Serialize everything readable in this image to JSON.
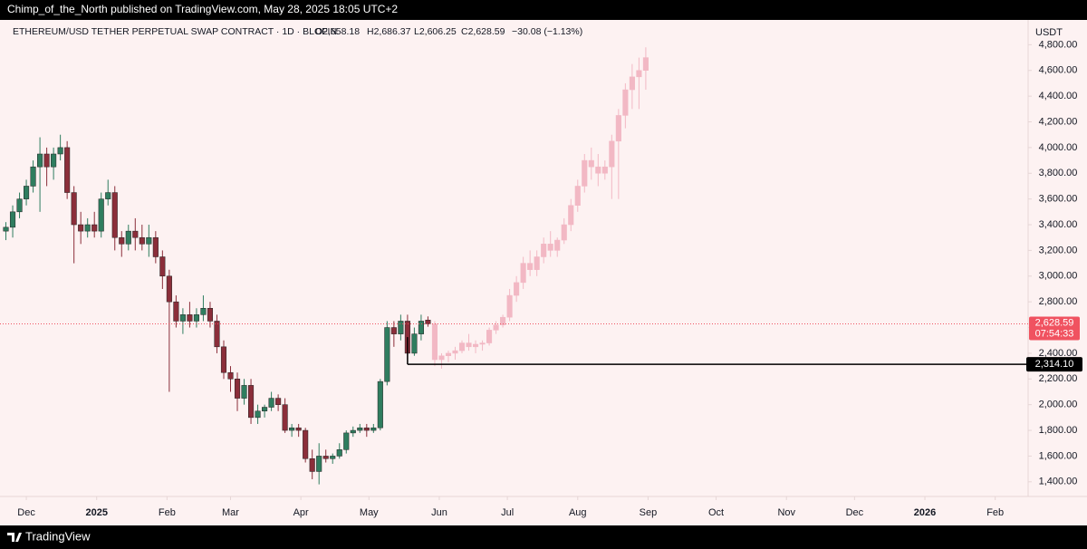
{
  "page": {
    "publisher_line": "Chimp_of_the_North published on TradingView.com, May 28, 2025 18:05 UTC+2",
    "brand": "TradingView"
  },
  "header": {
    "symbol": "ETHEREUM/USD TETHER PERPETUAL SWAP CONTRACT · 1D · BLOFIN",
    "open": "O2,658.18",
    "high": "H2,686.37",
    "low": "L2,606.25",
    "close": "C2,628.59",
    "change": "−30.08 (−1.13%)",
    "currency": "USDT"
  },
  "chart_data": {
    "type": "candlestick",
    "xlim": [
      -11.6,
      441.5
    ],
    "xticks": [
      {
        "value": 0,
        "label": "Dec"
      },
      {
        "value": 31,
        "label": "2025"
      },
      {
        "value": 62,
        "label": "Feb"
      },
      {
        "value": 90,
        "label": "Mar"
      },
      {
        "value": 121,
        "label": "Apr"
      },
      {
        "value": 151,
        "label": "May"
      },
      {
        "value": 182,
        "label": "Jun"
      },
      {
        "value": 212,
        "label": "Jul"
      },
      {
        "value": 243,
        "label": "Aug"
      },
      {
        "value": 274,
        "label": "Sep"
      },
      {
        "value": 304,
        "label": "Oct"
      },
      {
        "value": 335,
        "label": "Nov"
      },
      {
        "value": 365,
        "label": "Dec"
      },
      {
        "value": 396,
        "label": "2026"
      },
      {
        "value": 427,
        "label": "Feb"
      }
    ],
    "ylim": [
      1300,
      5000
    ],
    "yticks": [
      {
        "value": 1400,
        "label": "1,400.00"
      },
      {
        "value": 1600,
        "label": "1,600.00"
      },
      {
        "value": 1800,
        "label": "1,800.00"
      },
      {
        "value": 2000,
        "label": "2,000.00"
      },
      {
        "value": 2200,
        "label": "2,200.00"
      },
      {
        "value": 2400,
        "label": "2,400.00"
      },
      {
        "value": 2600,
        "label": "2,600.00"
      },
      {
        "value": 2800,
        "label": "2,800.00"
      },
      {
        "value": 3000,
        "label": "3,000.00"
      },
      {
        "value": 3200,
        "label": "3,200.00"
      },
      {
        "value": 3400,
        "label": "3,400.00"
      },
      {
        "value": 3600,
        "label": "3,600.00"
      },
      {
        "value": 3800,
        "label": "3,800.00"
      },
      {
        "value": 4000,
        "label": "4,000.00"
      },
      {
        "value": 4200,
        "label": "4,200.00"
      },
      {
        "value": 4400,
        "label": "4,400.00"
      },
      {
        "value": 4600,
        "label": "4,600.00"
      },
      {
        "value": 4800,
        "label": "4,800.00"
      }
    ],
    "series": [
      {
        "color_up": "#2f7d5f",
        "color_down": "#8b2e3a",
        "x": [
          -9,
          -6,
          -3,
          0,
          3,
          6,
          9,
          12,
          15,
          18,
          21,
          24,
          27,
          30,
          33,
          36,
          39,
          42,
          45,
          48,
          51,
          54,
          57,
          60,
          63,
          66,
          69,
          72,
          75,
          78,
          81,
          84,
          87,
          90,
          93,
          96,
          99,
          102,
          105,
          108,
          111,
          114,
          117,
          120,
          123,
          126,
          129,
          132,
          135,
          138,
          141,
          144,
          147,
          150,
          153,
          156,
          159,
          162,
          165,
          168,
          171,
          174,
          177
        ],
        "open": [
          3350,
          3380,
          3500,
          3600,
          3700,
          3850,
          3950,
          3850,
          3950,
          4000,
          3650,
          3400,
          3350,
          3400,
          3350,
          3600,
          3650,
          3300,
          3250,
          3350,
          3300,
          3250,
          3300,
          3150,
          3000,
          2800,
          2650,
          2700,
          2650,
          2700,
          2750,
          2650,
          2450,
          2250,
          2200,
          2050,
          2150,
          1900,
          1950,
          1980,
          2050,
          2000,
          1800,
          1820,
          1800,
          1580,
          1480,
          1600,
          1580,
          1600,
          1650,
          1780,
          1800,
          1820,
          1800,
          1820,
          2180,
          2600,
          2550,
          2650,
          2400,
          2550,
          2658.18
        ],
        "high": [
          3420,
          3550,
          3650,
          3750,
          3900,
          4080,
          4000,
          4000,
          4100,
          4050,
          3700,
          3500,
          3450,
          3500,
          3650,
          3750,
          3700,
          3350,
          3400,
          3450,
          3400,
          3400,
          3350,
          3200,
          3050,
          2850,
          2750,
          2800,
          2750,
          2850,
          2800,
          2700,
          2500,
          2300,
          2250,
          2200,
          2200,
          2000,
          2000,
          2100,
          2080,
          2050,
          1850,
          1850,
          1820,
          1650,
          1700,
          1650,
          1620,
          1700,
          1800,
          1830,
          1850,
          1850,
          1850,
          2200,
          2650,
          2650,
          2700,
          2700,
          2600,
          2700,
          2686.37
        ],
        "low": [
          3280,
          3300,
          3450,
          3550,
          3650,
          3500,
          3700,
          3750,
          3900,
          3600,
          3100,
          3250,
          3300,
          3300,
          3300,
          3550,
          3200,
          3150,
          3200,
          3200,
          3200,
          3150,
          3100,
          2900,
          2100,
          2600,
          2550,
          2600,
          2600,
          2650,
          2600,
          2400,
          2200,
          2100,
          1950,
          2000,
          1850,
          1850,
          1900,
          1950,
          1950,
          1780,
          1750,
          1750,
          1550,
          1420,
          1380,
          1550,
          1540,
          1580,
          1620,
          1750,
          1780,
          1750,
          1780,
          1800,
          2150,
          2450,
          2500,
          2350,
          2380,
          2500,
          2606.25
        ],
        "close": [
          3380,
          3500,
          3600,
          3700,
          3850,
          3950,
          3850,
          3950,
          4000,
          3650,
          3400,
          3350,
          3400,
          3350,
          3600,
          3650,
          3300,
          3250,
          3350,
          3300,
          3250,
          3300,
          3150,
          3000,
          2800,
          2650,
          2700,
          2650,
          2700,
          2750,
          2650,
          2450,
          2250,
          2200,
          2050,
          2150,
          1900,
          1950,
          1980,
          2050,
          2000,
          1800,
          1820,
          1800,
          1580,
          1480,
          1600,
          1580,
          1600,
          1650,
          1780,
          1800,
          1820,
          1800,
          1820,
          2180,
          2600,
          2550,
          2650,
          2400,
          2550,
          2650,
          2628.59
        ]
      },
      {
        "color_up": "#f2b8c4",
        "color_down": "#f2b8c4",
        "x": [
          180,
          183,
          186,
          189,
          192,
          195,
          198,
          201,
          204,
          207,
          210,
          213,
          216,
          219,
          222,
          225,
          228,
          231,
          234,
          237,
          240,
          243,
          246,
          249,
          252,
          255,
          258,
          261,
          264,
          267,
          270,
          273
        ],
        "open": [
          2628,
          2350,
          2380,
          2400,
          2420,
          2480,
          2450,
          2470,
          2480,
          2580,
          2620,
          2680,
          2850,
          2950,
          3100,
          3050,
          3150,
          3250,
          3200,
          3280,
          3400,
          3550,
          3700,
          3900,
          3850,
          3800,
          3850,
          4050,
          4250,
          4450,
          4550,
          4600
        ],
        "high": [
          2650,
          2400,
          2420,
          2450,
          2500,
          2550,
          2500,
          2500,
          2600,
          2650,
          2700,
          2900,
          3000,
          3150,
          3200,
          3200,
          3300,
          3350,
          3300,
          3450,
          3600,
          3750,
          3950,
          4000,
          3950,
          3900,
          4100,
          4300,
          4500,
          4650,
          4700,
          4780
        ],
        "low": [
          2300,
          2280,
          2330,
          2350,
          2400,
          2420,
          2400,
          2420,
          2460,
          2550,
          2600,
          2650,
          2800,
          2900,
          3000,
          3000,
          3100,
          3150,
          3150,
          3250,
          3350,
          3500,
          3650,
          3750,
          3700,
          3750,
          3600,
          3600,
          4150,
          4300,
          4300,
          4450
        ],
        "close": [
          2350,
          2380,
          2400,
          2420,
          2480,
          2450,
          2470,
          2480,
          2580,
          2620,
          2680,
          2850,
          2950,
          3100,
          3050,
          3150,
          3250,
          3200,
          3280,
          3400,
          3550,
          3700,
          3900,
          3850,
          3800,
          3850,
          4050,
          4250,
          4450,
          4550,
          4600,
          4700
        ]
      }
    ],
    "last_price": {
      "value": 2628.59,
      "label": "2,628.59",
      "countdown": "07:54:33",
      "color": "#f05260"
    },
    "level_line": {
      "value": 2314.1,
      "label": "2,314.10",
      "x": 168,
      "color": "#000000"
    }
  }
}
